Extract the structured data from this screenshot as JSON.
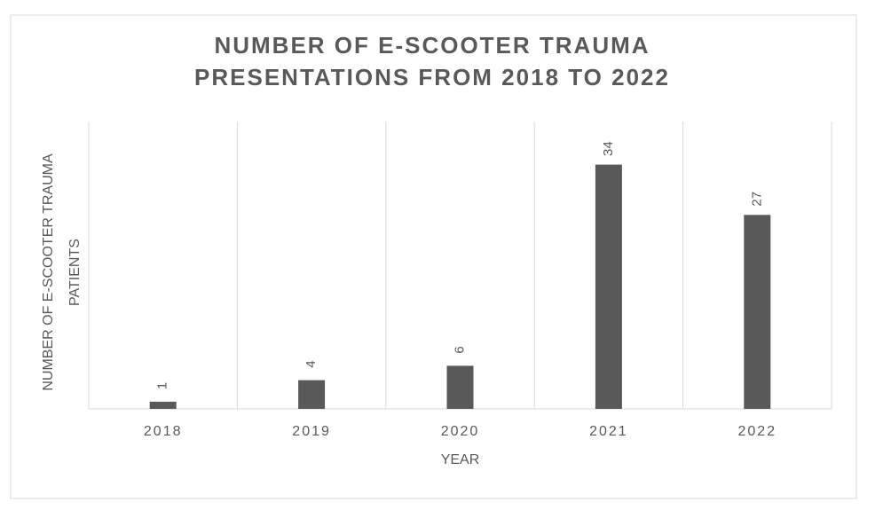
{
  "chart_data": {
    "type": "bar",
    "title": [
      "NUMBER OF E-SCOOTER TRAUMA",
      "PRESENTATIONS FROM 2018 TO 2022"
    ],
    "x_label": "YEAR",
    "y_label": [
      "NUMBER OF E-SCOOTER TRAUMA",
      "PATIENTS"
    ],
    "categories": [
      "2018",
      "2019",
      "2020",
      "2021",
      "2022"
    ],
    "values": [
      1,
      4,
      6,
      34,
      27
    ],
    "color": "#595959",
    "ylim": [
      0,
      40
    ],
    "grid": true
  }
}
